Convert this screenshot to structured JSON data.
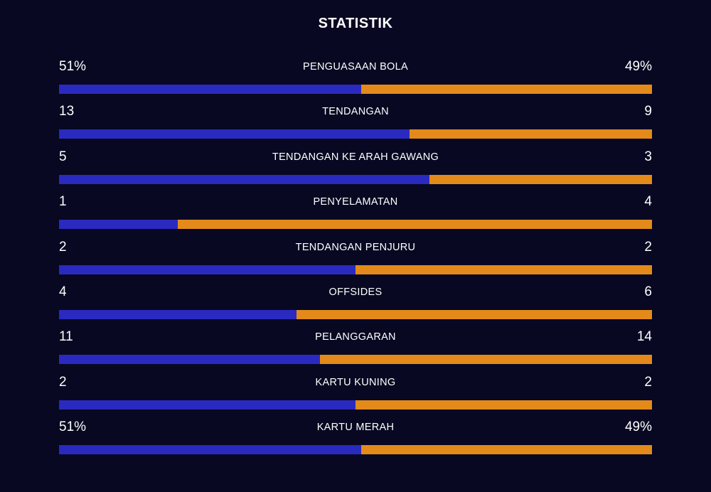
{
  "title": "STATISTIK",
  "colors": {
    "background": "#080822",
    "home_bar": "#2a2ac0",
    "away_bar": "#e38a1a"
  },
  "stats": [
    {
      "label": "PENGUASAAN BOLA",
      "home": "51%",
      "away": "49%",
      "home_share": 0.51
    },
    {
      "label": "TENDANGAN",
      "home": "13",
      "away": "9",
      "home_share": 0.591
    },
    {
      "label": "TENDANGAN KE ARAH GAWANG",
      "home": "5",
      "away": "3",
      "home_share": 0.625
    },
    {
      "label": "PENYELAMATAN",
      "home": "1",
      "away": "4",
      "home_share": 0.2
    },
    {
      "label": "TENDANGAN PENJURU",
      "home": "2",
      "away": "2",
      "home_share": 0.5
    },
    {
      "label": "OFFSIDES",
      "home": "4",
      "away": "6",
      "home_share": 0.4
    },
    {
      "label": "PELANGGARAN",
      "home": "11",
      "away": "14",
      "home_share": 0.44
    },
    {
      "label": "KARTU KUNING",
      "home": "2",
      "away": "2",
      "home_share": 0.5
    },
    {
      "label": "KARTU MERAH",
      "home": "51%",
      "away": "49%",
      "home_share": 0.51
    }
  ]
}
